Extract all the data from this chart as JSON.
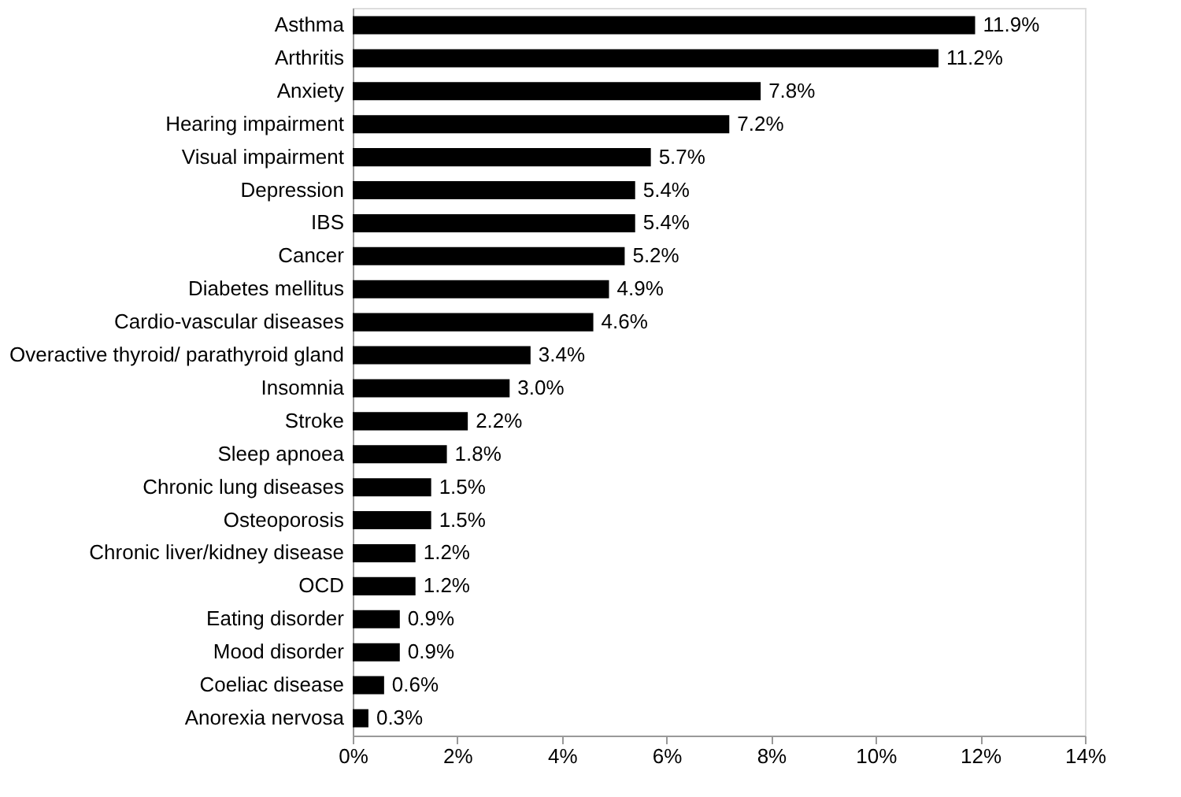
{
  "chart_data": {
    "type": "bar",
    "orientation": "horizontal",
    "categories": [
      "Asthma",
      "Arthritis",
      "Anxiety",
      "Hearing impairment",
      "Visual impairment",
      "Depression",
      "IBS",
      "Cancer",
      "Diabetes mellitus",
      "Cardio-vascular diseases",
      "Overactive thyroid/ parathyroid gland",
      "Insomnia",
      "Stroke",
      "Sleep apnoea",
      "Chronic lung diseases",
      "Osteoporosis",
      "Chronic liver/kidney disease",
      "OCD",
      "Eating disorder",
      "Mood disorder",
      "Coeliac disease",
      "Anorexia nervosa"
    ],
    "values": [
      11.9,
      11.2,
      7.8,
      7.2,
      5.7,
      5.4,
      5.4,
      5.2,
      4.9,
      4.6,
      3.4,
      3.0,
      2.2,
      1.8,
      1.5,
      1.5,
      1.2,
      1.2,
      0.9,
      0.9,
      0.6,
      0.3
    ],
    "value_labels": [
      "11.9%",
      "11.2%",
      "7.8%",
      "7.2%",
      "5.7%",
      "5.4%",
      "5.4%",
      "5.2%",
      "4.9%",
      "4.6%",
      "3.4%",
      "3.0%",
      "2.2%",
      "1.8%",
      "1.5%",
      "1.5%",
      "1.2%",
      "1.2%",
      "0.9%",
      "0.9%",
      "0.6%",
      "0.3%"
    ],
    "color": "#000000",
    "xlim": [
      0,
      14
    ],
    "xticks": [
      {
        "value": 0,
        "label": "0%"
      },
      {
        "value": 2,
        "label": "2%"
      },
      {
        "value": 4,
        "label": "4%"
      },
      {
        "value": 6,
        "label": "6%"
      },
      {
        "value": 8,
        "label": "8%"
      },
      {
        "value": 10,
        "label": "10%"
      },
      {
        "value": 12,
        "label": "12%"
      },
      {
        "value": 14,
        "label": "14%"
      }
    ],
    "grid": false
  }
}
